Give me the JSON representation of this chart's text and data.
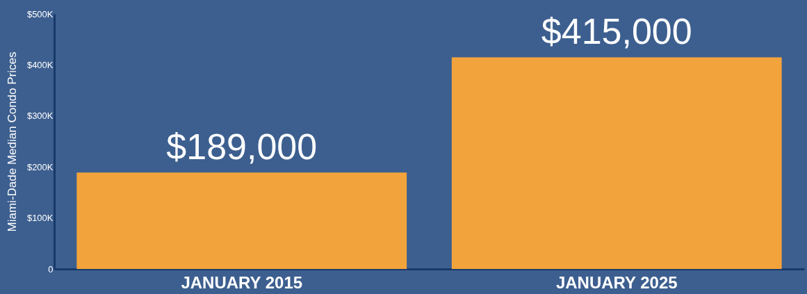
{
  "chart_data": {
    "type": "bar",
    "ylabel": "Miami-Dade Median Condo Prices",
    "categories": [
      "JANUARY 2015",
      "JANUARY 2025"
    ],
    "values": [
      189000,
      415000
    ],
    "value_labels": [
      "$189,000",
      "$415,000"
    ],
    "color": "#f3a33b",
    "ylim": [
      0,
      500000
    ],
    "yticks": [
      0,
      {
        "value": 100000,
        "label": "$100K"
      },
      {
        "value": 200000,
        "label": "$200K"
      },
      {
        "value": 300000,
        "label": "$300K"
      },
      {
        "value": 400000,
        "label": "$400K"
      },
      {
        "value": 500000,
        "label": "$500K"
      }
    ],
    "grid": false
  }
}
